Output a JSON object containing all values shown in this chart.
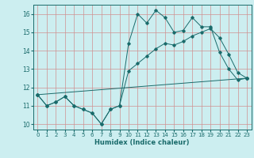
{
  "title": "",
  "xlabel": "Humidex (Indice chaleur)",
  "bg_color": "#cceef0",
  "grid_color": "#d09090",
  "line_color": "#1a6b6b",
  "xlim": [
    -0.5,
    23.5
  ],
  "ylim": [
    9.7,
    16.5
  ],
  "x_ticks": [
    0,
    1,
    2,
    3,
    4,
    5,
    6,
    7,
    8,
    9,
    10,
    11,
    12,
    13,
    14,
    15,
    16,
    17,
    18,
    19,
    20,
    21,
    22,
    23
  ],
  "y_ticks": [
    10,
    11,
    12,
    13,
    14,
    15,
    16
  ],
  "line1_x": [
    0,
    1,
    2,
    3,
    4,
    5,
    6,
    7,
    8,
    9,
    10,
    11,
    12,
    13,
    14,
    15,
    16,
    17,
    18,
    19,
    20,
    21,
    22,
    23
  ],
  "line1_y": [
    11.6,
    11.0,
    11.2,
    11.5,
    11.0,
    10.8,
    10.6,
    10.0,
    10.8,
    11.0,
    14.4,
    16.0,
    15.5,
    16.2,
    15.8,
    15.0,
    15.1,
    15.8,
    15.3,
    15.3,
    13.9,
    13.0,
    12.4,
    12.5
  ],
  "line2_x": [
    0,
    1,
    2,
    3,
    4,
    5,
    6,
    7,
    8,
    9,
    10,
    11,
    12,
    13,
    14,
    15,
    16,
    17,
    18,
    19,
    20,
    21,
    22,
    23
  ],
  "line2_y": [
    11.6,
    11.0,
    11.2,
    11.5,
    11.0,
    10.8,
    10.6,
    10.0,
    10.8,
    11.0,
    12.9,
    13.3,
    13.7,
    14.1,
    14.4,
    14.3,
    14.5,
    14.8,
    15.0,
    15.2,
    14.7,
    13.8,
    12.8,
    12.5
  ],
  "line3_x": [
    0,
    23
  ],
  "line3_y": [
    11.6,
    12.5
  ],
  "xlabel_fontsize": 6,
  "tick_fontsize": 5,
  "marker_size": 1.8,
  "line_width": 0.7
}
